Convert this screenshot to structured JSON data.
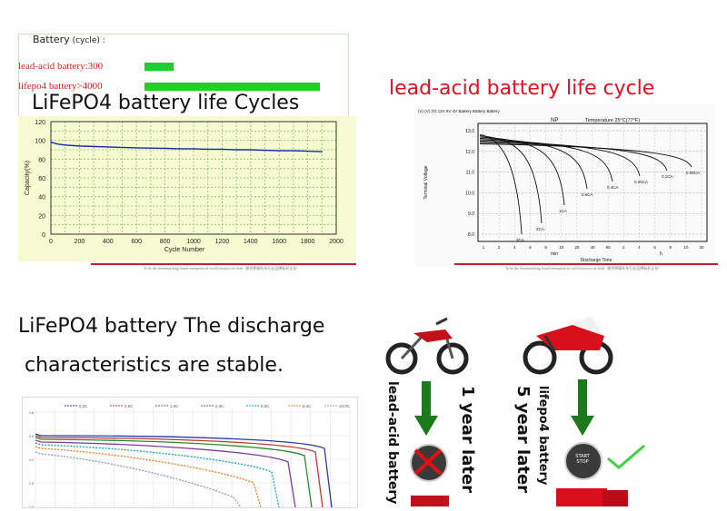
{
  "comparison": {
    "title": "Battery",
    "title_suffix": "(cycle) :",
    "rows": [
      {
        "label": "lead-acid battery:300",
        "value": 300
      },
      {
        "label": "lifepo4 battery>4000",
        "value": 4000
      }
    ],
    "bar_color": "#21cf2b"
  },
  "lifepo4_section": {
    "title": "LiFePO4 battery life Cycles"
  },
  "leadacid_section": {
    "title": "lead-acid battery life cycle"
  },
  "discharge_section": {
    "title_line1": "LiFePO4 battery The discharge",
    "title_line2": " characteristics are stable."
  },
  "life_compare": {
    "lead_acid_label": "lead-acid battery",
    "lead_acid_years": "1 year later",
    "lifepo4_label": "lifepo4 battery",
    "lifepo4_years": "5 year later",
    "start_label": "START STOP"
  },
  "footer_text": "To be the benchmarking brand enterprises in world motorcycle field  ·  做世界摩托车行业品牌标杆企业!",
  "chart_data": [
    {
      "type": "line",
      "title": "",
      "xlabel": "Cycle Number",
      "ylabel": "Capacity(%)",
      "xlim": [
        0,
        2000
      ],
      "ylim": [
        0,
        120
      ],
      "xticks": [
        "0",
        "200",
        "400",
        "600",
        "800",
        "1000",
        "1200",
        "1400",
        "1600",
        "1800",
        "2000"
      ],
      "yticks": [
        "0",
        "20",
        "40",
        "60",
        "80",
        "100",
        "120"
      ],
      "grid": true,
      "series": [
        {
          "name": "",
          "color": "#1a2aa8",
          "x": [
            0,
            50,
            100,
            200,
            300,
            400,
            500,
            600,
            700,
            800,
            900,
            1000,
            1100,
            1200,
            1300,
            1400,
            1500,
            1600,
            1700,
            1800,
            1900
          ],
          "y": [
            98,
            96,
            95,
            94,
            93.5,
            93,
            92.5,
            92,
            91.8,
            91.5,
            91,
            91,
            90.5,
            90.5,
            90,
            90,
            89.5,
            89,
            89,
            88.5,
            88
          ]
        }
      ]
    },
    {
      "type": "line",
      "title": "",
      "xlabel": "Discharge Time",
      "ylabel": "Terminal Voltage",
      "header_left": "(V) (V) (V) 12V 6V 4V Battery Battery Battery",
      "header_mid": "NP",
      "header_right": "Temperature 25°C(77°F)",
      "yticks": [
        "13.0",
        "12.0",
        "11.0",
        "10.0",
        "9.0",
        "8.0"
      ],
      "xticks": [
        "1",
        "2",
        "4",
        "6",
        "8",
        "10",
        "20",
        "40",
        "60",
        "2",
        "4",
        "6",
        "8",
        "10",
        "20"
      ],
      "x_units": [
        "min",
        "h"
      ],
      "grid": true,
      "series": [
        {
          "name": "3CA",
          "color": "#111"
        },
        {
          "name": "2CA",
          "color": "#111"
        },
        {
          "name": "1CA",
          "color": "#111"
        },
        {
          "name": "0.6CA",
          "color": "#111"
        },
        {
          "name": "0.4CA",
          "color": "#111"
        },
        {
          "name": "0.25CA",
          "color": "#111"
        },
        {
          "name": "0.1CA",
          "color": "#111"
        },
        {
          "name": "0.05CA",
          "color": "#111"
        }
      ]
    },
    {
      "type": "line",
      "title": "",
      "legend": [
        "0.2C",
        "0.5C",
        "1.0C",
        "2.0C",
        "5.0C",
        "8.0C",
        "10.0C"
      ],
      "yticks": [
        "3.8",
        "3.5",
        "3.2",
        "2.9",
        "2.6",
        "2.3"
      ],
      "grid": true,
      "series": [
        {
          "name": "0.2C",
          "color": "#2a3bb0"
        },
        {
          "name": "0.5C",
          "color": "#c0392b"
        },
        {
          "name": "1.0C",
          "color": "#2d8a2d"
        },
        {
          "name": "2.0C",
          "color": "#7d3c98"
        },
        {
          "name": "5.0C",
          "color": "#17a2b8"
        },
        {
          "name": "8.0C",
          "color": "#e67e22"
        },
        {
          "name": "10.0C",
          "color": "#8a9bb5"
        }
      ]
    }
  ]
}
